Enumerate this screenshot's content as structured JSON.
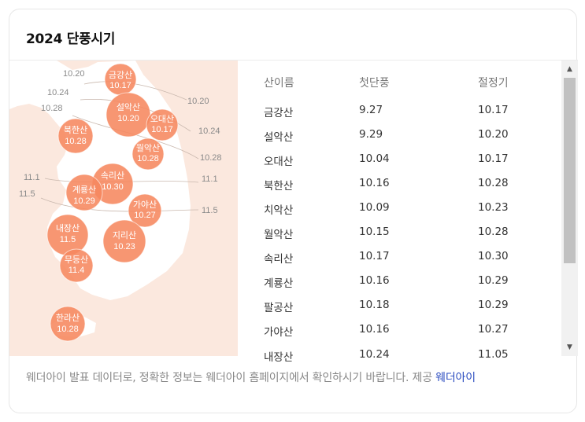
{
  "title": "2024 단풍시기",
  "table": {
    "headers": [
      "산이름",
      "첫단풍",
      "절정기"
    ],
    "rows": [
      [
        "금강산",
        "9.27",
        "10.17"
      ],
      [
        "설악산",
        "9.29",
        "10.20"
      ],
      [
        "오대산",
        "10.04",
        "10.17"
      ],
      [
        "북한산",
        "10.16",
        "10.28"
      ],
      [
        "치악산",
        "10.09",
        "10.23"
      ],
      [
        "월악산",
        "10.15",
        "10.28"
      ],
      [
        "속리산",
        "10.17",
        "10.30"
      ],
      [
        "계룡산",
        "10.16",
        "10.29"
      ],
      [
        "팔공산",
        "10.18",
        "10.29"
      ],
      [
        "가야산",
        "10.16",
        "10.27"
      ],
      [
        "내장산",
        "10.24",
        "11.05"
      ]
    ]
  },
  "map": {
    "mountains": [
      {
        "name": "금강산",
        "date": "10.17"
      },
      {
        "name": "설악산",
        "date": "10.20"
      },
      {
        "name": "오대산",
        "date": "10.17"
      },
      {
        "name": "북한산",
        "date": "10.28"
      },
      {
        "name": "월악산",
        "date": "10.28"
      },
      {
        "name": "속리산",
        "date": "10.30"
      },
      {
        "name": "계룡산",
        "date": "10.29"
      },
      {
        "name": "가야산",
        "date": "10.27"
      },
      {
        "name": "지리산",
        "date": "10.23"
      },
      {
        "name": "내장산",
        "date": "11.5"
      },
      {
        "name": "무등산",
        "date": "11.4"
      },
      {
        "name": "한라산",
        "date": "10.28"
      }
    ],
    "isolines": [
      "10.20",
      "10.24",
      "10.28",
      "10.20",
      "10.24",
      "10.28",
      "11.1",
      "11.5",
      "11.1",
      "11.5"
    ],
    "colors": {
      "sea": "#fbe8de",
      "land": "#ffffff",
      "bubble": "#f6875f",
      "isoline": "#c9b8ae"
    }
  },
  "footer": {
    "text": "웨더아이 발표 데이터로, 정확한 정보는 웨더아이 홈페이지에서 확인하시기 바랍니다. 제공 ",
    "link": "웨더아이"
  },
  "scrollbar": {
    "up_icon": "▲",
    "down_icon": "▼"
  }
}
